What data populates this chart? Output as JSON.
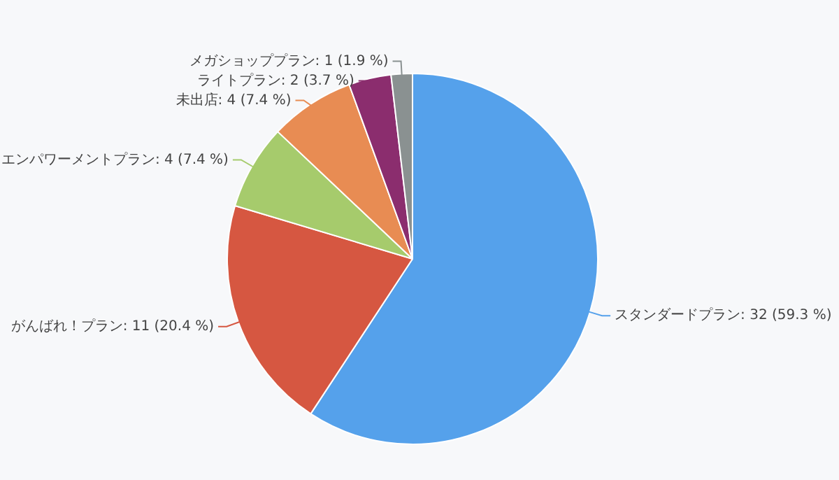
{
  "chart_data": {
    "type": "pie",
    "categories": [
      "スタンダードプラン",
      "がんばれ！プラン",
      "エンパワーメントプラン",
      "未出店",
      "ライトプラン",
      "メガショッププラン"
    ],
    "values": [
      32,
      11,
      4,
      4,
      2,
      1
    ],
    "value_labels": [
      "32 (59.3 %)",
      "11 (20.4 %)",
      "4 (7.4 %)",
      "4 (7.4 %)",
      "2 (3.7 %)",
      "1 (1.9 %)"
    ],
    "colors": [
      "#55a1eb",
      "#d65741",
      "#a6cb6c",
      "#e88c53",
      "#8b2d6e",
      "#8a9191"
    ],
    "legend": false
  }
}
